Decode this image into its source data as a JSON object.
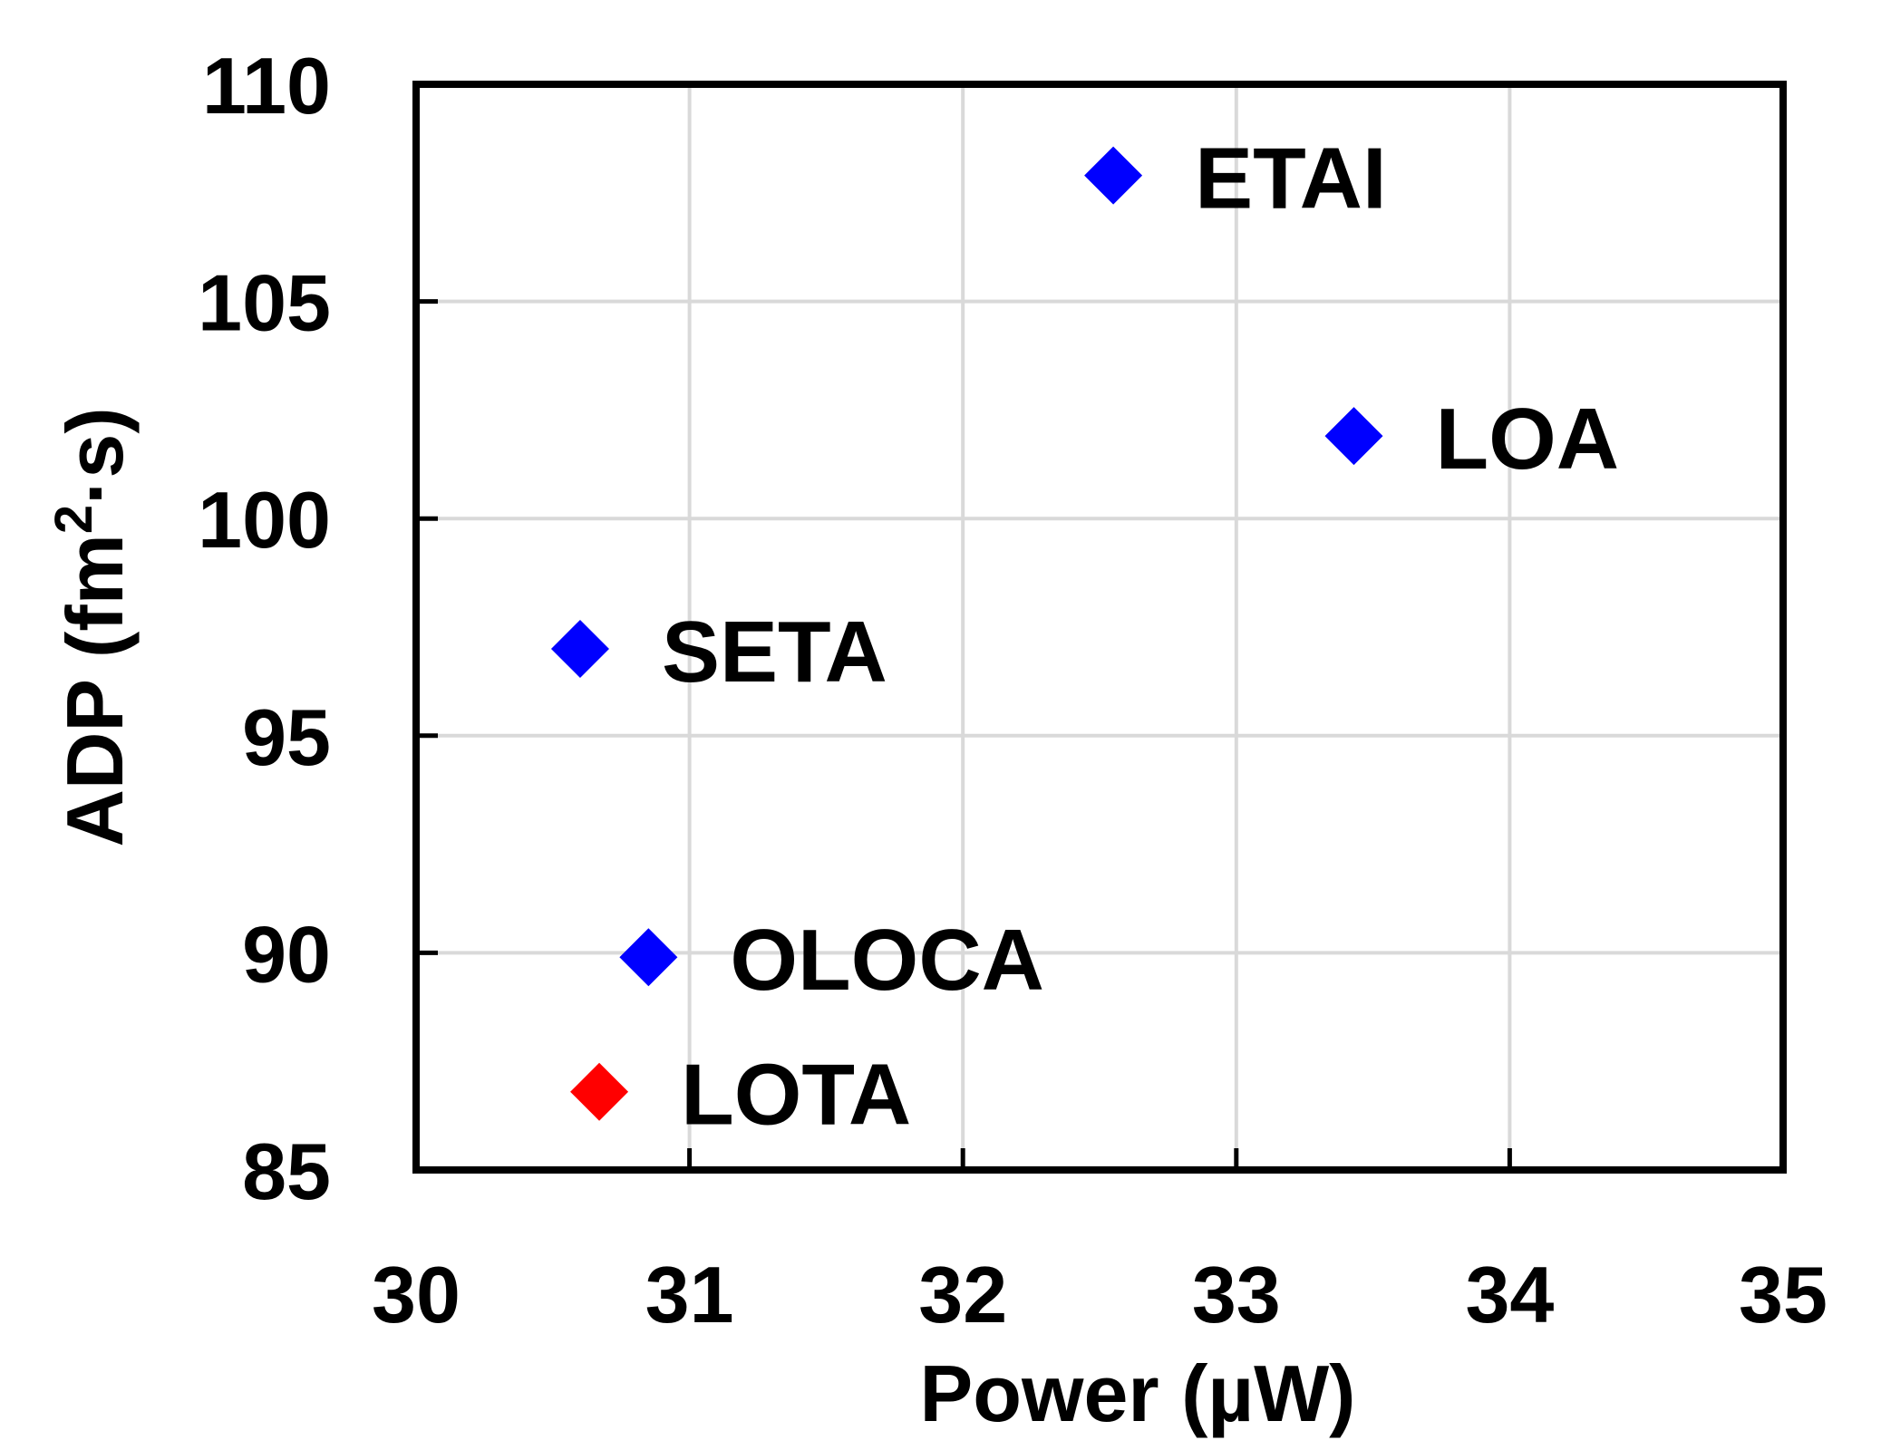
{
  "chart_data": {
    "type": "scatter",
    "title": "",
    "xlabel": "Power (µW)",
    "ylabel_main": "ADP (fm",
    "ylabel_sup": "2",
    "ylabel_tail": "·s)",
    "xlim": [
      30,
      35
    ],
    "ylim": [
      85,
      110
    ],
    "x_ticks": [
      30,
      31,
      32,
      33,
      34,
      35
    ],
    "y_ticks": [
      85,
      90,
      95,
      100,
      105,
      110
    ],
    "x_tick_labels": [
      "30",
      "31",
      "32",
      "33",
      "34",
      "35"
    ],
    "y_tick_labels": [
      "85",
      "90",
      "95",
      "100",
      "105",
      "110"
    ],
    "grid": true,
    "marker": "diamond",
    "points": [
      {
        "label": "ETAI",
        "x": 32.55,
        "y": 107.9,
        "color": "#0000ff"
      },
      {
        "label": "LOA",
        "x": 33.43,
        "y": 101.9,
        "color": "#0000ff"
      },
      {
        "label": "SETA",
        "x": 30.6,
        "y": 97.0,
        "color": "#0000ff"
      },
      {
        "label": "OLOCA",
        "x": 30.85,
        "y": 89.9,
        "color": "#0000ff"
      },
      {
        "label": "LOTA",
        "x": 30.67,
        "y": 86.8,
        "color": "#ff0000"
      }
    ]
  }
}
